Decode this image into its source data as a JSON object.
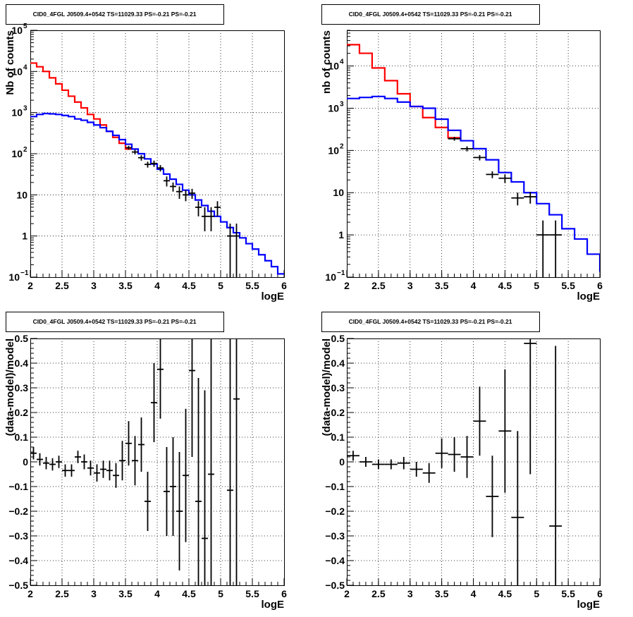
{
  "chart_data": [
    {
      "type": "histogram",
      "panel": "top-left",
      "title": "CID0_4FGL J0509.4+0542 TS=11029.33 PS=-0.21 PS=-0.21",
      "xlabel": "logE",
      "ylabel": "Nb of counts",
      "xlim": [
        2,
        6
      ],
      "ylim": [
        0.1,
        100000
      ],
      "yscale": "log",
      "grid": true,
      "x_ticks": [
        "2",
        "2.5",
        "3",
        "3.5",
        "4",
        "4.5",
        "5",
        "5.5",
        "6"
      ],
      "y_ticks": [
        {
          "value": 0.1,
          "label": "10",
          "exp": "−1"
        },
        {
          "value": 1,
          "label": "1",
          "exp": ""
        },
        {
          "value": 10,
          "label": "10",
          "exp": ""
        },
        {
          "value": 100,
          "label": "10",
          "exp": "2"
        },
        {
          "value": 1000,
          "label": "10",
          "exp": "3"
        },
        {
          "value": 10000,
          "label": "10",
          "exp": "4"
        },
        {
          "value": 100000,
          "label": "10",
          "exp": "5"
        }
      ],
      "bin_width": 0.1,
      "series": [
        {
          "color": "#ff0000",
          "style": "step",
          "x_start": 2.0,
          "values": [
            16000,
            13000,
            10000,
            7000,
            5000,
            3500,
            2500,
            1800,
            1300,
            900,
            700,
            500,
            350,
            250,
            180,
            130
          ]
        },
        {
          "color": "#0000ff",
          "style": "step",
          "x_start": 2.0,
          "values": [
            800,
            900,
            950,
            930,
            900,
            850,
            800,
            700,
            650,
            580,
            500,
            430,
            350,
            280,
            220,
            170,
            130,
            100,
            75,
            56,
            42,
            32,
            24,
            18,
            13,
            10,
            7.5,
            5.5,
            4,
            3,
            2.2,
            1.6,
            1.2,
            0.9,
            0.65,
            0.48,
            0.35,
            0.25,
            0.18,
            0.12
          ]
        }
      ],
      "points": [
        {
          "x": 3.55,
          "y": 140,
          "ylo": 125,
          "yhi": 155
        },
        {
          "x": 3.65,
          "y": 110,
          "ylo": 96,
          "yhi": 124
        },
        {
          "x": 3.75,
          "y": 80,
          "ylo": 68,
          "yhi": 92
        },
        {
          "x": 3.85,
          "y": 55,
          "ylo": 46,
          "yhi": 64
        },
        {
          "x": 3.95,
          "y": 58,
          "ylo": 48,
          "yhi": 68
        },
        {
          "x": 4.05,
          "y": 45,
          "ylo": 37,
          "yhi": 53
        },
        {
          "x": 4.15,
          "y": 22,
          "ylo": 16,
          "yhi": 28
        },
        {
          "x": 4.25,
          "y": 16,
          "ylo": 12,
          "yhi": 20
        },
        {
          "x": 4.35,
          "y": 12,
          "ylo": 8,
          "yhi": 16
        },
        {
          "x": 4.45,
          "y": 10,
          "ylo": 7,
          "yhi": 13
        },
        {
          "x": 4.55,
          "y": 11,
          "ylo": 8,
          "yhi": 14
        },
        {
          "x": 4.65,
          "y": 5,
          "ylo": 3,
          "yhi": 7
        },
        {
          "x": 4.75,
          "y": 3,
          "ylo": 1.3,
          "yhi": 5
        },
        {
          "x": 4.85,
          "y": 3,
          "ylo": 1.3,
          "yhi": 5
        },
        {
          "x": 4.95,
          "y": 5,
          "ylo": 3,
          "yhi": 7
        },
        {
          "x": 5.15,
          "y": 1,
          "ylo": 0.1,
          "yhi": 2
        },
        {
          "x": 5.25,
          "y": 1,
          "ylo": 0.1,
          "yhi": 2
        }
      ]
    },
    {
      "type": "histogram",
      "panel": "top-right",
      "title": "CID0_4FGL J0509.4+0542 TS=11029.33 PS=-0.21 PS=-0.21",
      "xlabel": "logE",
      "ylabel": "nb of counts",
      "xlim": [
        2,
        6
      ],
      "ylim": [
        0.1,
        70000
      ],
      "yscale": "log",
      "grid": true,
      "x_ticks": [
        "2",
        "2.5",
        "3",
        "3.5",
        "4",
        "4.5",
        "5",
        "5.5",
        "6"
      ],
      "y_ticks": [
        {
          "value": 0.1,
          "label": "10",
          "exp": "−1"
        },
        {
          "value": 1,
          "label": "1",
          "exp": ""
        },
        {
          "value": 10,
          "label": "10",
          "exp": ""
        },
        {
          "value": 100,
          "label": "10",
          "exp": "2"
        },
        {
          "value": 1000,
          "label": "10",
          "exp": "3"
        },
        {
          "value": 10000,
          "label": "10",
          "exp": "4"
        }
      ],
      "bin_width": 0.2,
      "series": [
        {
          "color": "#ff0000",
          "style": "step",
          "x_start": 2.0,
          "values": [
            32000,
            20000,
            9000,
            4500,
            2200,
            1100,
            600,
            350,
            200
          ]
        },
        {
          "color": "#0000ff",
          "style": "step",
          "x_start": 2.0,
          "values": [
            1700,
            1800,
            1900,
            1700,
            1400,
            1100,
            1000,
            550,
            300,
            170,
            110,
            60,
            30,
            18,
            10,
            5.5,
            3,
            1.4,
            0.8,
            0.35,
            0.14
          ]
        }
      ],
      "points": [
        {
          "x": 3.7,
          "y": 190,
          "ylo": 170,
          "yhi": 210
        },
        {
          "x": 3.9,
          "y": 110,
          "ylo": 95,
          "yhi": 125
        },
        {
          "x": 4.1,
          "y": 68,
          "ylo": 58,
          "yhi": 78
        },
        {
          "x": 4.3,
          "y": 27,
          "ylo": 22,
          "yhi": 32
        },
        {
          "x": 4.5,
          "y": 22,
          "ylo": 17,
          "yhi": 27
        },
        {
          "x": 4.7,
          "y": 7.5,
          "ylo": 5,
          "yhi": 10
        },
        {
          "x": 4.9,
          "y": 8,
          "ylo": 5.5,
          "yhi": 10.5
        },
        {
          "x": 5.1,
          "y": 1,
          "ylo": 0.1,
          "yhi": 2.2
        },
        {
          "x": 5.3,
          "y": 1,
          "ylo": 0.1,
          "yhi": 2.2
        }
      ]
    },
    {
      "type": "scatter",
      "panel": "bottom-left",
      "title": "CID0_4FGL J0509.4+0542 TS=11029.33 PS=-0.21 PS=-0.21",
      "xlabel": "logE",
      "ylabel": "(data-model)/model",
      "xlim": [
        2,
        6
      ],
      "ylim": [
        -0.5,
        0.5
      ],
      "grid": true,
      "x_ticks": [
        "2",
        "2.5",
        "3",
        "3.5",
        "4",
        "4.5",
        "5",
        "5.5",
        "6"
      ],
      "y_ticks": [
        "−0.5",
        "−0.4",
        "−0.3",
        "−0.2",
        "−0.1",
        "0",
        "0.1",
        "0.2",
        "0.3",
        "0.4",
        "0.5"
      ],
      "half_bin": 0.05,
      "points": [
        {
          "x": 2.05,
          "y": 0.035,
          "e": 0.025
        },
        {
          "x": 2.15,
          "y": 0.01,
          "e": 0.025
        },
        {
          "x": 2.25,
          "y": -0.005,
          "e": 0.025
        },
        {
          "x": 2.35,
          "y": -0.01,
          "e": 0.025
        },
        {
          "x": 2.45,
          "y": 0.0,
          "e": 0.025
        },
        {
          "x": 2.55,
          "y": -0.035,
          "e": 0.025
        },
        {
          "x": 2.65,
          "y": -0.035,
          "e": 0.025
        },
        {
          "x": 2.75,
          "y": 0.02,
          "e": 0.025
        },
        {
          "x": 2.85,
          "y": 0.0,
          "e": 0.03
        },
        {
          "x": 2.95,
          "y": -0.025,
          "e": 0.03
        },
        {
          "x": 3.05,
          "y": -0.045,
          "e": 0.035
        },
        {
          "x": 3.15,
          "y": -0.03,
          "e": 0.035
        },
        {
          "x": 3.25,
          "y": -0.035,
          "e": 0.04
        },
        {
          "x": 3.35,
          "y": -0.055,
          "e": 0.05
        },
        {
          "x": 3.45,
          "y": 0.005,
          "e": 0.08
        },
        {
          "x": 3.55,
          "y": 0.075,
          "e": 0.09
        },
        {
          "x": 3.65,
          "y": 0.005,
          "e": 0.1
        },
        {
          "x": 3.75,
          "y": 0.07,
          "e": 0.11
        },
        {
          "x": 3.85,
          "y": -0.16,
          "e": 0.12
        },
        {
          "x": 3.95,
          "y": 0.24,
          "e": 0.16
        },
        {
          "x": 4.05,
          "y": 0.375,
          "e": 0.2
        },
        {
          "x": 4.15,
          "y": -0.12,
          "e": 0.18
        },
        {
          "x": 4.25,
          "y": -0.1,
          "e": 0.2
        },
        {
          "x": 4.35,
          "y": -0.2,
          "e": 0.24
        },
        {
          "x": 4.45,
          "y": -0.055,
          "e": 0.27
        },
        {
          "x": 4.55,
          "y": 0.37,
          "e": 0.35
        },
        {
          "x": 4.65,
          "y": -0.16,
          "e": 0.5
        },
        {
          "x": 4.75,
          "y": -0.31,
          "e": 0.6
        },
        {
          "x": 4.85,
          "y": -0.05,
          "e": 0.7
        },
        {
          "x": 5.15,
          "y": -0.115,
          "e": 1.0
        },
        {
          "x": 5.25,
          "y": 0.255,
          "e": 1.0
        }
      ]
    },
    {
      "type": "scatter",
      "panel": "bottom-right",
      "title": "CID0_4FGL J0509.4+0542 TS=11029.33 PS=-0.21 PS=-0.21",
      "xlabel": "logE",
      "ylabel": "(data-model)/model",
      "xlim": [
        2,
        6
      ],
      "ylim": [
        -0.5,
        0.5
      ],
      "grid": true,
      "x_ticks": [
        "2",
        "2.5",
        "3",
        "3.5",
        "4",
        "4.5",
        "5",
        "5.5",
        "6"
      ],
      "y_ticks": [
        "−0.5",
        "−0.4",
        "−0.3",
        "−0.2",
        "−0.1",
        "0",
        "0.1",
        "0.2",
        "0.3",
        "0.4",
        "0.5"
      ],
      "half_bin": 0.1,
      "points": [
        {
          "x": 2.1,
          "y": 0.025,
          "e": 0.02
        },
        {
          "x": 2.3,
          "y": 0.0,
          "e": 0.02
        },
        {
          "x": 2.5,
          "y": -0.01,
          "e": 0.02
        },
        {
          "x": 2.7,
          "y": -0.01,
          "e": 0.02
        },
        {
          "x": 2.9,
          "y": -0.005,
          "e": 0.025
        },
        {
          "x": 3.1,
          "y": -0.03,
          "e": 0.03
        },
        {
          "x": 3.3,
          "y": -0.045,
          "e": 0.04
        },
        {
          "x": 3.5,
          "y": 0.035,
          "e": 0.06
        },
        {
          "x": 3.7,
          "y": 0.03,
          "e": 0.07
        },
        {
          "x": 3.9,
          "y": 0.02,
          "e": 0.085
        },
        {
          "x": 4.1,
          "y": 0.165,
          "e": 0.14
        },
        {
          "x": 4.3,
          "y": -0.14,
          "e": 0.165
        },
        {
          "x": 4.5,
          "y": 0.125,
          "e": 0.25
        },
        {
          "x": 4.7,
          "y": -0.225,
          "e": 0.35
        },
        {
          "x": 4.9,
          "y": 0.48,
          "e": 0.53
        },
        {
          "x": 5.3,
          "y": -0.26,
          "e": 0.73
        }
      ]
    }
  ]
}
